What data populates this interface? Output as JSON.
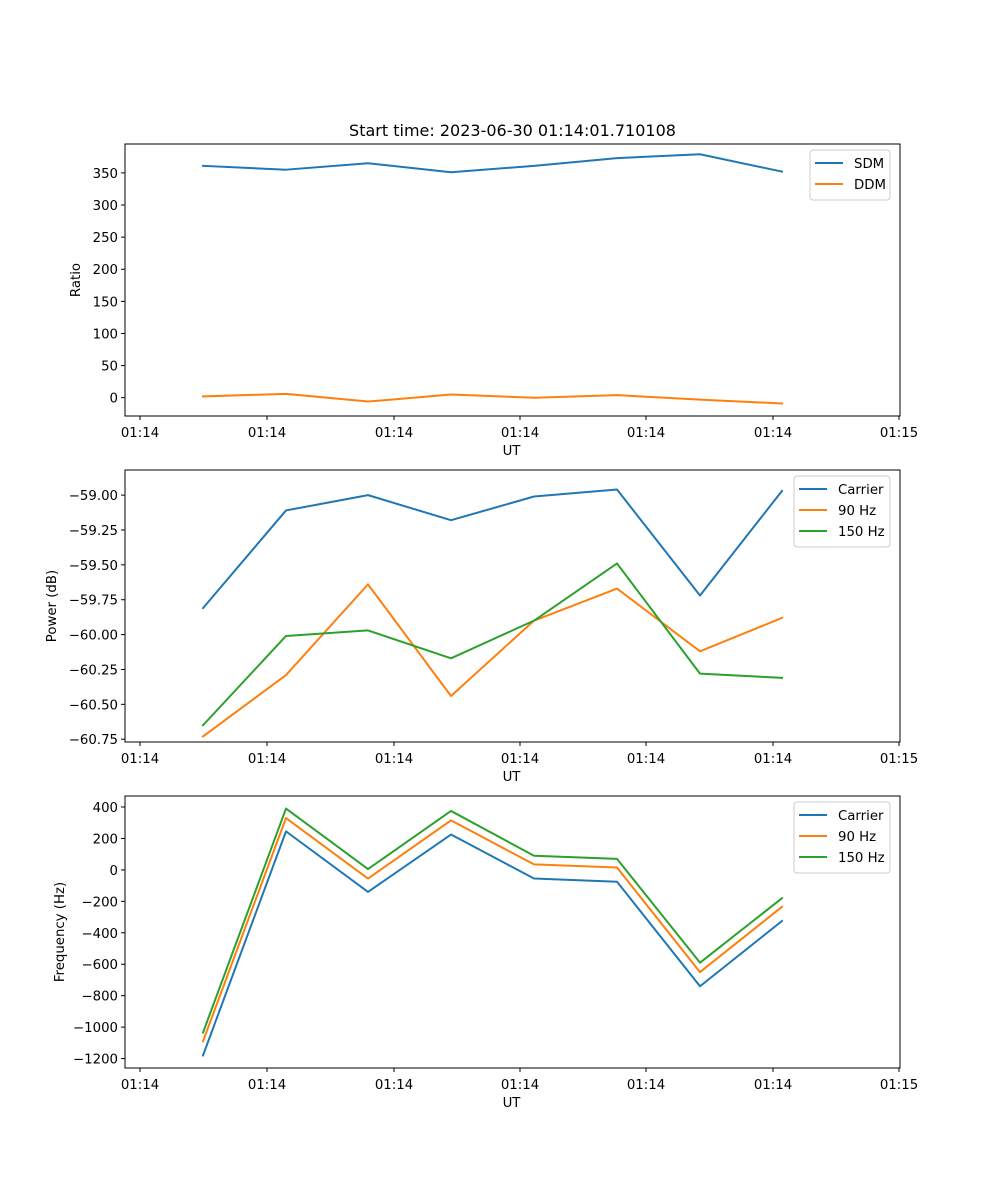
{
  "chart_data": [
    {
      "type": "line",
      "title": "Start time: 2023-06-30 01:14:01.710108",
      "xlabel": "UT",
      "ylabel": "Ratio",
      "x_tick_labels": [
        "01:14",
        "01:14",
        "01:14",
        "01:14",
        "01:14",
        "01:14",
        "01:14",
        "01:15"
      ],
      "y_ticks": [
        0,
        50,
        100,
        150,
        200,
        250,
        300,
        350
      ],
      "ylim": [
        -28.5,
        395
      ],
      "grid": false,
      "legend": "top-right",
      "series": [
        {
          "name": "SDM",
          "color": "#1f77b4",
          "values": [
            361,
            355,
            365,
            351,
            361,
            373,
            379,
            352
          ]
        },
        {
          "name": "DDM",
          "color": "#ff7f0e",
          "values": [
            2,
            6,
            -6,
            5,
            0,
            4,
            -3,
            -9
          ]
        }
      ]
    },
    {
      "type": "line",
      "title": "",
      "xlabel": "UT",
      "ylabel": "Power (dB)",
      "x_tick_labels": [
        "01:14",
        "01:14",
        "01:14",
        "01:14",
        "01:14",
        "01:14",
        "01:14",
        "01:15"
      ],
      "y_ticks": [
        -60.75,
        -60.5,
        -60.25,
        -60.0,
        -59.75,
        -59.5,
        -59.25,
        -59.0
      ],
      "y_tick_labels": [
        "−60.75",
        "−60.50",
        "−60.25",
        "−60.00",
        "−59.75",
        "−59.50",
        "−59.25",
        "−59.00"
      ],
      "ylim": [
        -60.77,
        -58.82
      ],
      "grid": false,
      "legend": "top-right",
      "series": [
        {
          "name": "Carrier",
          "color": "#1f77b4",
          "values": [
            -59.81,
            -59.11,
            -59.0,
            -59.18,
            -59.01,
            -58.96,
            -59.72,
            -58.97
          ]
        },
        {
          "name": "90 Hz",
          "color": "#ff7f0e",
          "values": [
            -60.73,
            -60.29,
            -59.64,
            -60.44,
            -59.9,
            -59.67,
            -60.12,
            -59.88
          ]
        },
        {
          "name": "150 Hz",
          "color": "#2ca02c",
          "values": [
            -60.65,
            -60.01,
            -59.97,
            -60.17,
            -59.9,
            -59.49,
            -60.28,
            -60.31
          ]
        }
      ]
    },
    {
      "type": "line",
      "title": "",
      "xlabel": "UT",
      "ylabel": "Frequency (Hz)",
      "x_tick_labels": [
        "01:14",
        "01:14",
        "01:14",
        "01:14",
        "01:14",
        "01:14",
        "01:14",
        "01:15"
      ],
      "y_ticks": [
        -1200,
        -1000,
        -800,
        -600,
        -400,
        -200,
        0,
        200,
        400
      ],
      "y_tick_labels": [
        "−1200",
        "−1000",
        "−800",
        "−600",
        "−400",
        "−200",
        "0",
        "200",
        "400"
      ],
      "ylim": [
        -1260,
        470
      ],
      "grid": false,
      "legend": "top-right",
      "series": [
        {
          "name": "Carrier",
          "color": "#1f77b4",
          "values": [
            -1180,
            245,
            -140,
            225,
            -55,
            -75,
            -740,
            -325
          ]
        },
        {
          "name": "90 Hz",
          "color": "#ff7f0e",
          "values": [
            -1090,
            330,
            -55,
            315,
            35,
            15,
            -650,
            -235
          ]
        },
        {
          "name": "150 Hz",
          "color": "#2ca02c",
          "values": [
            -1035,
            390,
            5,
            375,
            90,
            70,
            -590,
            -180
          ]
        }
      ]
    }
  ]
}
